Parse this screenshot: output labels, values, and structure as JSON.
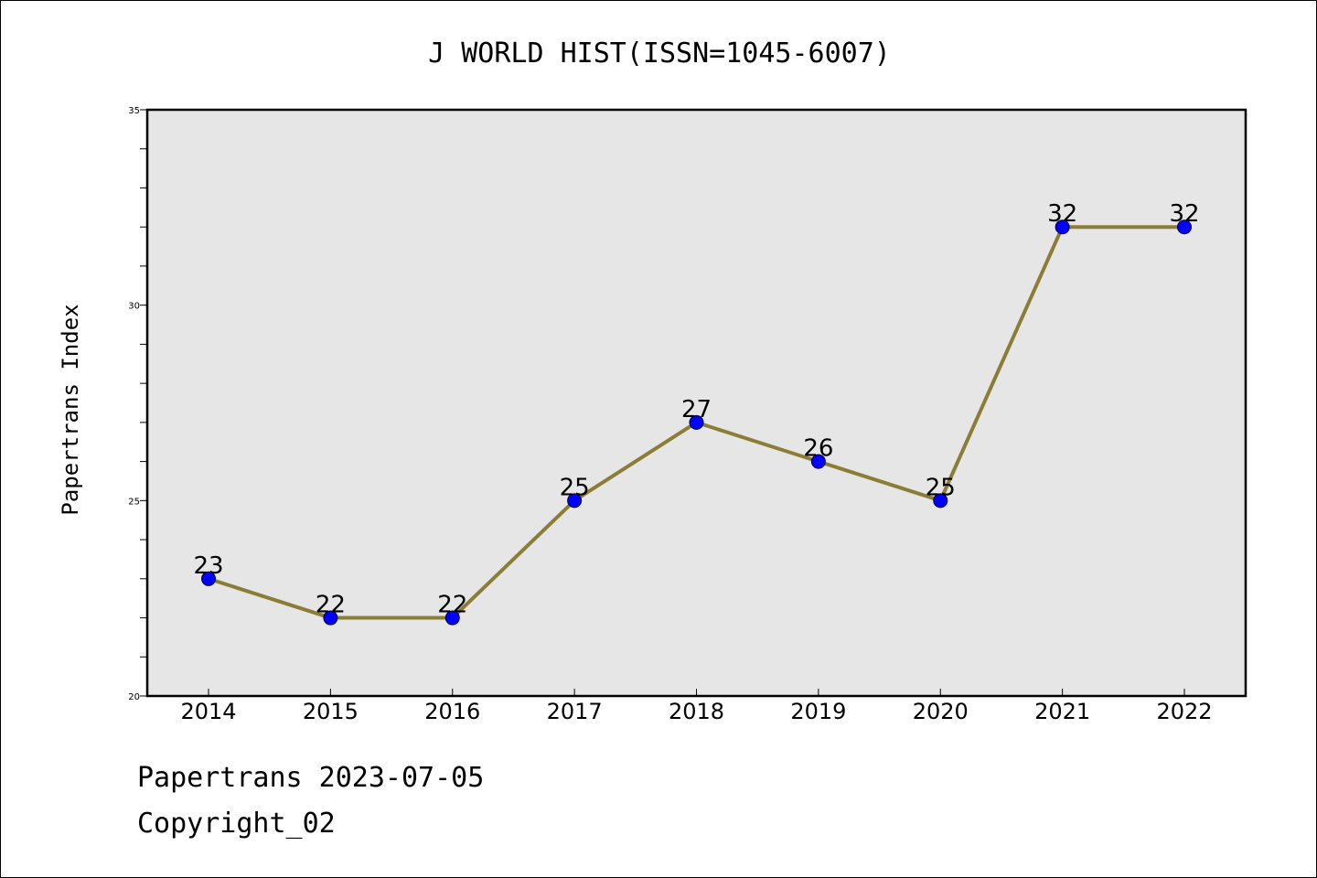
{
  "chart_data": {
    "type": "line",
    "title": "J WORLD HIST(ISSN=1045-6007)",
    "xlabel": "",
    "ylabel": "Papertrans Index",
    "categories": [
      "2014",
      "2015",
      "2016",
      "2017",
      "2018",
      "2019",
      "2020",
      "2021",
      "2022"
    ],
    "values": [
      23,
      22,
      22,
      25,
      27,
      26,
      25,
      32,
      32
    ],
    "data_labels": [
      "23",
      "22",
      "22",
      "25",
      "27",
      "26",
      "25",
      "32",
      "32"
    ],
    "ylim": [
      20,
      35
    ],
    "y_ticks": [
      20,
      25,
      30,
      35
    ],
    "y_tick_labels": [
      "20",
      "25",
      "30",
      "35"
    ],
    "grid": false,
    "colors": {
      "line": "#8B7D35",
      "marker": "#0000FF",
      "plot_background": "#E6E6E6"
    }
  },
  "footer": {
    "date_text": "Papertrans 2023-07-05",
    "copyright_text": "Copyright_02"
  }
}
